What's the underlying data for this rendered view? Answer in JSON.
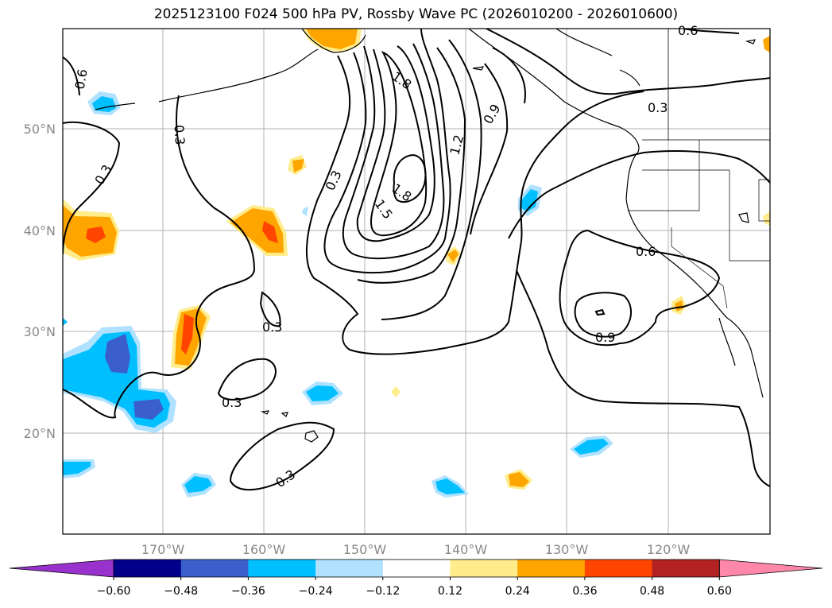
{
  "title": "2025123100 F024 500 hPa PV, Rossby Wave PC (2026010200 - 2026010600)",
  "map": {
    "lat_labels": [
      "50°N",
      "40°N",
      "30°N",
      "20°N"
    ],
    "lon_labels": [
      "170°W",
      "160°W",
      "150°W",
      "140°W",
      "130°W",
      "120°W"
    ],
    "contour_labels": [
      "0.6",
      "0.3",
      "0.3",
      "0.3",
      "1.8",
      "0.9",
      "0.6",
      "0.3",
      "1.2",
      "1.8",
      "1.5",
      "0.3",
      "0.6",
      "0.9",
      "0.3",
      "0.3",
      "0.3"
    ],
    "contour_levels": [
      0.3,
      0.6,
      0.9,
      1.2,
      1.5,
      1.8
    ]
  },
  "colorbar": {
    "tick_labels": [
      "−0.60",
      "−0.48",
      "−0.36",
      "−0.24",
      "−0.12",
      "0.12",
      "0.24",
      "0.36",
      "0.48",
      "0.60"
    ],
    "colors": [
      "#9932cc",
      "#00008b",
      "#3a5fcd",
      "#00bfff",
      "#b0e2ff",
      "#ffffff",
      "#ffec8b",
      "#ffa500",
      "#ff4500",
      "#b22222",
      "#ff88aa"
    ]
  }
}
